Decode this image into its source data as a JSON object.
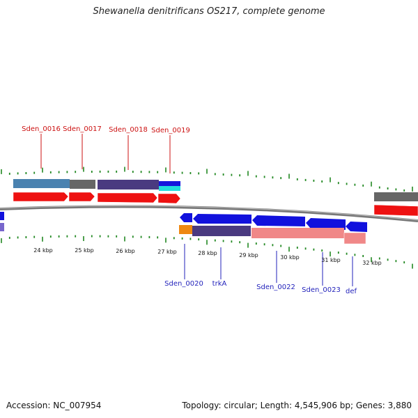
{
  "header": {
    "title": "Shewanella denitrificans OS217, complete genome"
  },
  "footer": {
    "accession": "Accession: NC_007954",
    "summary": "Topology: circular; Length: 4,545,906 bp; Genes: 3,880"
  },
  "scale_labels": [
    "24 kbp",
    "25 kbp",
    "26 kbp",
    "27 kbp",
    "28 kbp",
    "29 kbp",
    "30 kbp",
    "31 kbp",
    "32 kbp"
  ],
  "gene_labels_top": [
    "Sden_0016",
    "Sden_0017",
    "Sden_0018",
    "Sden_0019"
  ],
  "gene_labels_bottom": [
    "Sden_0020",
    "trkA",
    "Sden_0022",
    "Sden_0023",
    "def"
  ],
  "colors": {
    "gene_label_top": "#cc1111",
    "gene_label_bottom": "#2222bb",
    "forward_gene": "#ee1111",
    "reverse_gene": "#1111dd",
    "tick": "#228822",
    "backbone": "#777777"
  }
}
